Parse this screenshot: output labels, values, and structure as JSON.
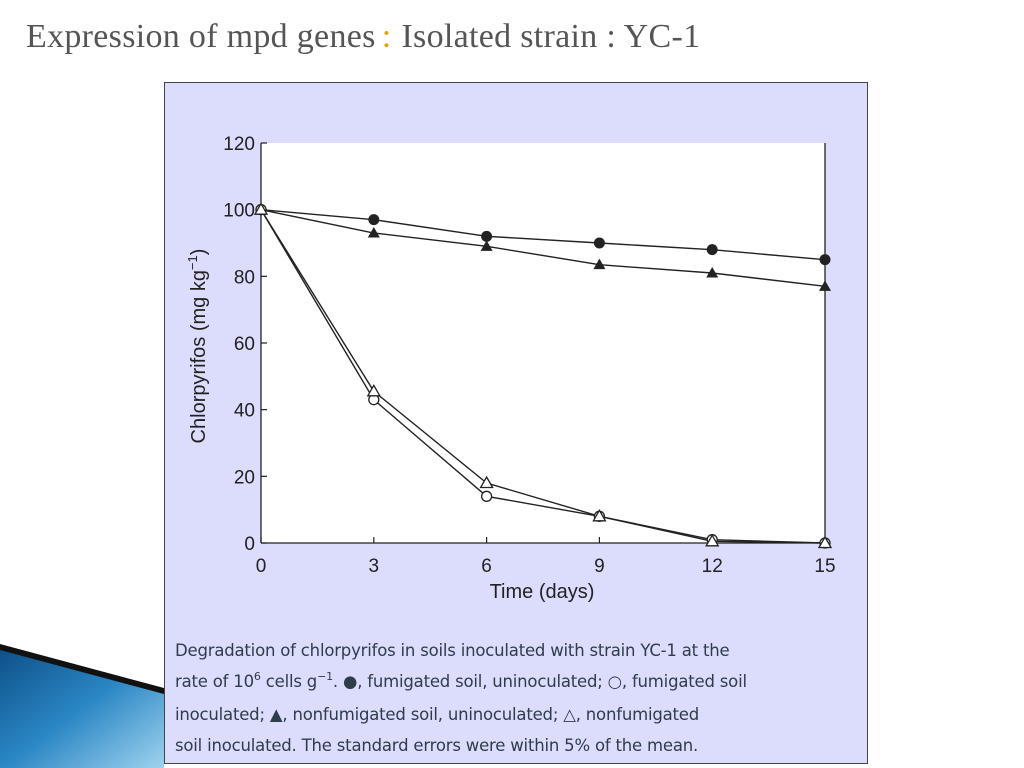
{
  "slide": {
    "title_left": "Expression of mpd genes",
    "title_sep": ":",
    "title_right": "Isolated strain : YC-1"
  },
  "colors": {
    "panel_bg": "#dcdcfc",
    "plot_bg": "#ffffff",
    "line": "#222222",
    "title_text": "#555555",
    "title_separator": "#e8a300",
    "caption_text": "#2f3c4a",
    "decor_blue": "#1f6fa8"
  },
  "chart_data": {
    "type": "line",
    "title": "",
    "xlabel": "Time (days)",
    "ylabel": "Chlorpyrifos (mg kg",
    "ylabel_sup": "−1",
    "ylabel_end": ")",
    "xlim": [
      0,
      15
    ],
    "ylim": [
      0,
      120
    ],
    "x_ticks": [
      0,
      3,
      6,
      9,
      12,
      15
    ],
    "y_ticks": [
      0,
      20,
      40,
      60,
      80,
      100,
      120
    ],
    "grid": false,
    "legend": "caption",
    "series": [
      {
        "marker": "filled-circle",
        "x": [
          0,
          3,
          6,
          9,
          12,
          15
        ],
        "y": [
          100,
          97,
          92,
          90,
          88,
          85
        ]
      },
      {
        "marker": "open-circle",
        "x": [
          0,
          3,
          6,
          9,
          12,
          15
        ],
        "y": [
          100,
          43,
          14,
          8,
          1,
          0
        ]
      },
      {
        "marker": "filled-triangle",
        "x": [
          0,
          3,
          6,
          9,
          12,
          15
        ],
        "y": [
          100,
          93,
          89,
          83.5,
          81,
          77
        ]
      },
      {
        "marker": "open-triangle",
        "x": [
          0,
          3,
          6,
          9,
          12,
          15
        ],
        "y": [
          100,
          45.5,
          18,
          8,
          0.5,
          0
        ]
      }
    ]
  },
  "caption": {
    "line1": "Degradation of chlorpyrifos in soils inoculated with strain YC-1 at the",
    "line2_a": "rate of 10",
    "line2_sup1": "6",
    "line2_b": " cells g",
    "line2_sup2": "−1",
    "line2_c": ". ●, fumigated soil, uninoculated; ○, fumigated soil",
    "line3": "inoculated; ▲, nonfumigated soil, uninoculated; △, nonfumigated",
    "line4": "soil inoculated. The standard errors were within 5% of the mean."
  }
}
